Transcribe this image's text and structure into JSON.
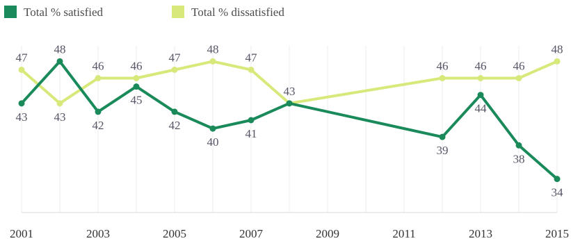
{
  "chart_data": {
    "type": "line",
    "x": [
      2001,
      2002,
      2003,
      2004,
      2005,
      2006,
      2007,
      2008,
      2012,
      2013,
      2014,
      2015
    ],
    "x_tick_labels": [
      "2001",
      "2003",
      "2005",
      "2007",
      "2009",
      "2011",
      "2013",
      "2015"
    ],
    "x_ticks": [
      2001,
      2003,
      2005,
      2007,
      2009,
      2011,
      2013,
      2015
    ],
    "xlim": [
      2001,
      2015
    ],
    "ylim": [
      30,
      52
    ],
    "series": [
      {
        "name": "Total % satisfied",
        "color": "#1a8a5a",
        "values": [
          43,
          48,
          42,
          45,
          42,
          40,
          41,
          43,
          39,
          44,
          38,
          34
        ],
        "labels": [
          "43",
          "48",
          "42",
          "45",
          "42",
          "40",
          "41",
          "",
          "39",
          "44",
          "38",
          "34"
        ]
      },
      {
        "name": "Total % dissatisfied",
        "color": "#d9e87a",
        "values": [
          47,
          43,
          46,
          46,
          47,
          48,
          47,
          43,
          46,
          46,
          46,
          48
        ],
        "labels": [
          "47",
          "43",
          "46",
          "46",
          "47",
          "48",
          "47",
          "43",
          "46",
          "46",
          "46",
          "48"
        ]
      }
    ],
    "grid": true,
    "legend_position": "top-left"
  }
}
